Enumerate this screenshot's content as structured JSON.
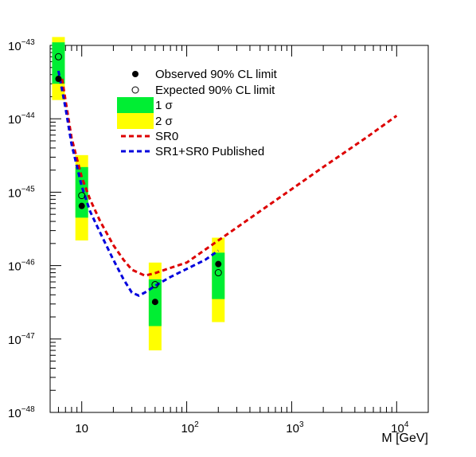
{
  "chart_data": {
    "type": "scatter",
    "xlabel": "M  [GeV]",
    "ylabel": "",
    "xscale": "log",
    "yscale": "log",
    "xlim": [
      5,
      20000
    ],
    "ylim": [
      1e-48,
      1e-43
    ],
    "grid": false,
    "legend_position": "top-center",
    "x_ticks": [
      {
        "base": "10",
        "exp": ""
      },
      {
        "base": "10",
        "exp": "2"
      },
      {
        "base": "10",
        "exp": "3"
      },
      {
        "base": "10",
        "exp": "4"
      }
    ],
    "y_ticks": [
      {
        "base": "10",
        "exp": "−48"
      },
      {
        "base": "10",
        "exp": "−47"
      },
      {
        "base": "10",
        "exp": "−46"
      },
      {
        "base": "10",
        "exp": "−45"
      },
      {
        "base": "10",
        "exp": "−44"
      },
      {
        "base": "10",
        "exp": "−43"
      }
    ],
    "legend": [
      {
        "label": "Observed 90% CL limit",
        "marker": "filled-circle"
      },
      {
        "label": "Expected 90% CL limit",
        "marker": "open-circle"
      },
      {
        "label": "1 σ",
        "marker": "band",
        "color": "#00ee33"
      },
      {
        "label": "2 σ",
        "marker": "band",
        "color": "#ffff00"
      },
      {
        "label": "SR0",
        "marker": "dashed",
        "color": "#dd0000"
      },
      {
        "label": "SR1+SR0 Published",
        "marker": "dashed",
        "color": "#0000dd"
      }
    ],
    "points": [
      {
        "m": 6,
        "observed": 3.5e-44,
        "expected": 7e-44,
        "sigma1": [
          3e-44,
          1.1e-43
        ],
        "sigma2": [
          1.8e-44,
          1.3e-43
        ]
      },
      {
        "m": 10,
        "observed": 6.5e-46,
        "expected": 9e-46,
        "sigma1": [
          4.5e-46,
          2.2e-45
        ],
        "sigma2": [
          2.2e-46,
          3.2e-45
        ]
      },
      {
        "m": 50,
        "observed": 3.2e-47,
        "expected": 5.5e-47,
        "sigma1": [
          1.5e-47,
          6.5e-47
        ],
        "sigma2": [
          7e-48,
          1.1e-46
        ]
      },
      {
        "m": 200,
        "observed": 1.05e-46,
        "expected": 8e-47,
        "sigma1": [
          3.5e-47,
          1.5e-46
        ],
        "sigma2": [
          1.7e-47,
          2.4e-46
        ]
      }
    ],
    "series": [
      {
        "name": "SR0",
        "color": "#dd0000",
        "x": [
          6.5,
          8,
          10,
          12,
          15,
          20,
          25,
          30,
          40,
          50,
          70,
          100,
          200,
          300,
          500,
          1000,
          2000,
          5000,
          10000
        ],
        "y": [
          3.5e-44,
          5.5e-45,
          1.6e-45,
          8e-46,
          4e-46,
          1.9e-46,
          1.2e-46,
          8.8e-47,
          7.3e-47,
          7.9e-47,
          9.3e-47,
          1.1e-46,
          2.2e-46,
          3.3e-46,
          5.5e-46,
          1.1e-45,
          2.2e-45,
          5.4e-45,
          1.1e-44
        ]
      },
      {
        "name": "SR1+SR0 Published",
        "color": "#0000dd",
        "x": [
          6,
          7,
          8,
          10,
          12,
          15,
          20,
          25,
          30,
          35,
          40,
          50,
          70,
          100,
          150,
          200
        ],
        "y": [
          4.5e-44,
          1.4e-44,
          4.5e-45,
          1.2e-45,
          5.5e-46,
          2.8e-46,
          1.2e-46,
          6.5e-47,
          4.3e-47,
          3.9e-47,
          4.3e-47,
          5.3e-47,
          7e-47,
          9e-47,
          1.2e-46,
          1.6e-46
        ]
      }
    ]
  }
}
